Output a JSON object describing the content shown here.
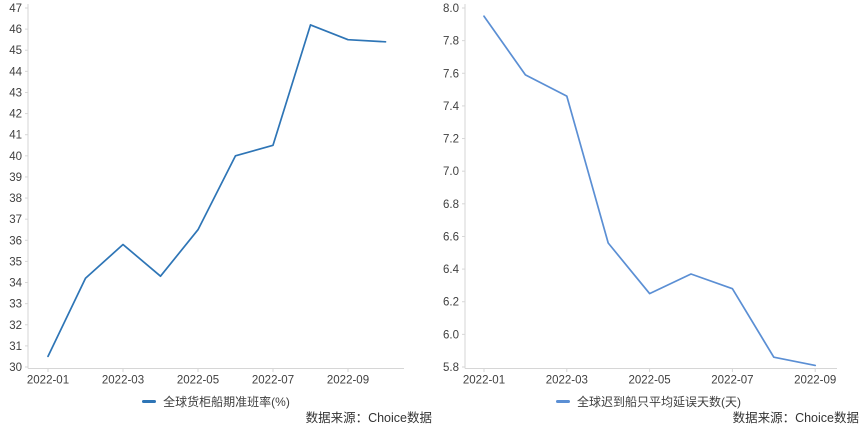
{
  "page": {
    "background": "#ffffff",
    "colors": {
      "axis": "#d6d6d6",
      "tick_text": "#404040",
      "left_line": "#2e75b6",
      "right_line": "#5b8fd4"
    }
  },
  "chart_data": [
    {
      "type": "line",
      "title": "",
      "legend": "全球货柜船期准班率(%)",
      "source": "数据来源：Choice数据",
      "x": [
        "2022-01",
        "2022-02",
        "2022-03",
        "2022-04",
        "2022-05",
        "2022-06",
        "2022-07",
        "2022-08",
        "2022-09",
        "2022-10"
      ],
      "values": [
        30.5,
        34.2,
        35.8,
        34.3,
        36.5,
        40.0,
        40.5,
        46.2,
        45.5,
        45.4
      ],
      "x_tick_labels": [
        "2022-01",
        "2022-03",
        "2022-05",
        "2022-07",
        "2022-09"
      ],
      "ylim": [
        30,
        47
      ],
      "y_step": 1,
      "grid": false,
      "legend_position": "bottom-center",
      "line_color": "#2e75b6"
    },
    {
      "type": "line",
      "title": "",
      "legend": "全球迟到船只平均延误天数(天)",
      "source": "数据来源：Choice数据",
      "x": [
        "2022-01",
        "2022-02",
        "2022-03",
        "2022-04",
        "2022-05",
        "2022-06",
        "2022-07",
        "2022-08",
        "2022-09"
      ],
      "values": [
        7.95,
        7.59,
        7.46,
        6.56,
        6.25,
        6.37,
        6.28,
        5.86,
        5.81
      ],
      "x_tick_labels": [
        "2022-01",
        "2022-03",
        "2022-05",
        "2022-07",
        "2022-09"
      ],
      "ylim": [
        5.8,
        8.0
      ],
      "y_step": 0.2,
      "grid": false,
      "legend_position": "bottom-center",
      "line_color": "#5b8fd4"
    }
  ]
}
